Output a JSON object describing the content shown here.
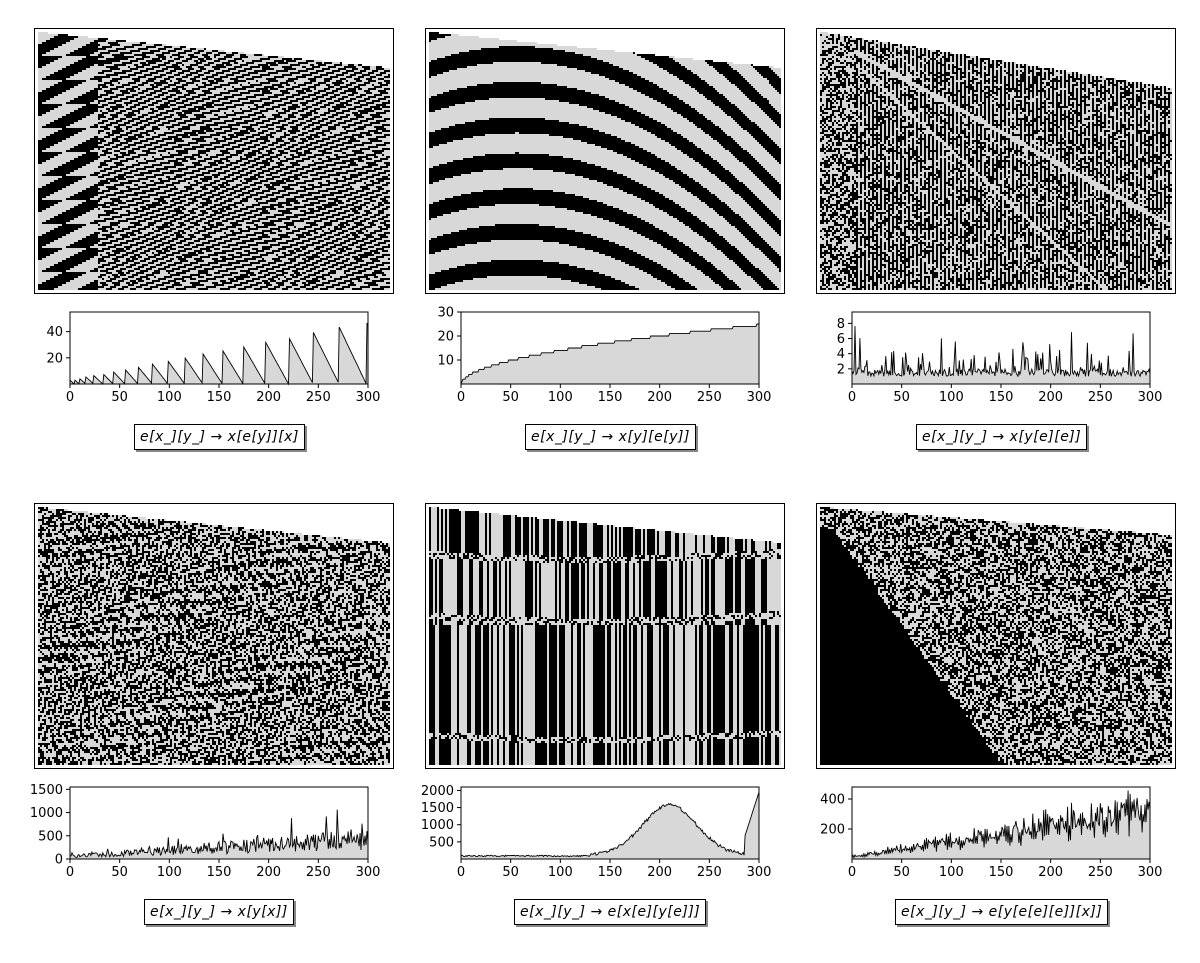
{
  "figure": {
    "panels": [
      {
        "rule": "e[x_][y_] → x[e[y]][x]",
        "pattern_style": "nested-triangles",
        "chart_data": {
          "type": "area",
          "x_ticks": [
            "0",
            "50",
            "100",
            "150",
            "200",
            "250",
            "300"
          ],
          "y_ticks": [
            "20",
            "40"
          ],
          "xlim": [
            0,
            300
          ],
          "ylim": [
            0,
            55
          ],
          "profile": "sawtooth-growing",
          "colors": {
            "fill": "#d8d8d8",
            "line": "#000000"
          }
        }
      },
      {
        "rule": "e[x_][y_] → x[y][e[y]]",
        "pattern_style": "diagonal-stripes",
        "chart_data": {
          "type": "area",
          "x_ticks": [
            "0",
            "50",
            "100",
            "150",
            "200",
            "250",
            "300"
          ],
          "y_ticks": [
            "10",
            "20",
            "30"
          ],
          "xlim": [
            0,
            300
          ],
          "ylim": [
            0,
            30
          ],
          "profile": "sqrt-steps",
          "colors": {
            "fill": "#d8d8d8",
            "line": "#000000"
          }
        }
      },
      {
        "rule": "e[x_][y_] → x[y[e][e]]",
        "pattern_style": "vertical-lines",
        "chart_data": {
          "type": "area",
          "x_ticks": [
            "0",
            "50",
            "100",
            "150",
            "200",
            "250",
            "300"
          ],
          "y_ticks": [
            "2",
            "4",
            "6",
            "8"
          ],
          "xlim": [
            0,
            300
          ],
          "ylim": [
            0,
            9.5
          ],
          "profile": "low-spiky",
          "colors": {
            "fill": "#d8d8d8",
            "line": "#000000"
          }
        }
      },
      {
        "rule": "e[x_][y_] → x[y[x]]",
        "pattern_style": "checker-wave",
        "chart_data": {
          "type": "area",
          "x_ticks": [
            "0",
            "50",
            "100",
            "150",
            "200",
            "250",
            "300"
          ],
          "y_ticks": [
            "0",
            "500",
            "1000",
            "1500"
          ],
          "xlim": [
            0,
            300
          ],
          "ylim": [
            0,
            1550
          ],
          "profile": "growing-spiky",
          "colors": {
            "fill": "#d8d8d8",
            "line": "#000000"
          }
        }
      },
      {
        "rule": "e[x_][y_] → e[x[e][y[e]]]",
        "pattern_style": "vertical-bands",
        "chart_data": {
          "type": "area",
          "x_ticks": [
            "0",
            "50",
            "100",
            "150",
            "200",
            "250",
            "300"
          ],
          "y_ticks": [
            "500",
            "1000",
            "1500",
            "2000"
          ],
          "xlim": [
            0,
            300
          ],
          "ylim": [
            0,
            2100
          ],
          "profile": "hump",
          "colors": {
            "fill": "#d8d8d8",
            "line": "#000000"
          }
        }
      },
      {
        "rule": "e[x_][y_] → e[y[e[e][e]][x]]",
        "pattern_style": "random-wedge",
        "chart_data": {
          "type": "area",
          "x_ticks": [
            "0",
            "50",
            "100",
            "150",
            "200",
            "250",
            "300"
          ],
          "y_ticks": [
            "200",
            "400"
          ],
          "xlim": [
            0,
            300
          ],
          "ylim": [
            0,
            480
          ],
          "profile": "growing-oscillating",
          "colors": {
            "fill": "#d8d8d8",
            "line": "#000000"
          }
        }
      }
    ]
  }
}
